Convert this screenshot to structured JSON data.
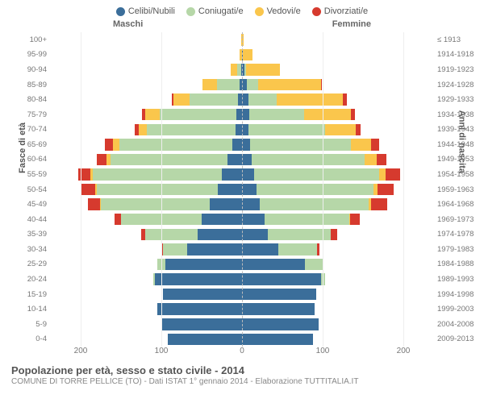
{
  "chart": {
    "type": "population-pyramid",
    "legend": [
      {
        "label": "Celibi/Nubili",
        "color": "#3b6e9a"
      },
      {
        "label": "Coniugati/e",
        "color": "#b6d7a8"
      },
      {
        "label": "Vedovi/e",
        "color": "#fac64c"
      },
      {
        "label": "Divorziati/e",
        "color": "#d63a2e"
      }
    ],
    "header_male": "Maschi",
    "header_female": "Femmine",
    "y_left_title": "Fasce di età",
    "y_right_title": "Anni di nascita",
    "x_ticks": [
      200,
      100,
      0,
      100,
      200
    ],
    "x_max": 240,
    "background_color": "#ffffff",
    "grid_color": "#eeeeee",
    "center_line_color": "#bbbbbb",
    "label_fontsize": 9.5,
    "legend_fontsize": 11,
    "rows": [
      {
        "age": "100+",
        "birth": "≤ 1913",
        "m": {
          "c": 0,
          "m": 0,
          "w": 1,
          "d": 0
        },
        "f": {
          "c": 0,
          "m": 0,
          "w": 2,
          "d": 0
        }
      },
      {
        "age": "95-99",
        "birth": "1914-1918",
        "m": {
          "c": 0,
          "m": 0,
          "w": 3,
          "d": 0
        },
        "f": {
          "c": 1,
          "m": 0,
          "w": 12,
          "d": 0
        }
      },
      {
        "age": "90-94",
        "birth": "1919-1923",
        "m": {
          "c": 1,
          "m": 5,
          "w": 8,
          "d": 0
        },
        "f": {
          "c": 3,
          "m": 2,
          "w": 42,
          "d": 0
        }
      },
      {
        "age": "85-89",
        "birth": "1924-1928",
        "m": {
          "c": 3,
          "m": 28,
          "w": 18,
          "d": 0
        },
        "f": {
          "c": 6,
          "m": 14,
          "w": 78,
          "d": 1
        }
      },
      {
        "age": "80-84",
        "birth": "1929-1933",
        "m": {
          "c": 5,
          "m": 60,
          "w": 20,
          "d": 2
        },
        "f": {
          "c": 8,
          "m": 35,
          "w": 82,
          "d": 5
        }
      },
      {
        "age": "75-79",
        "birth": "1934-1938",
        "m": {
          "c": 7,
          "m": 95,
          "w": 18,
          "d": 4
        },
        "f": {
          "c": 9,
          "m": 68,
          "w": 58,
          "d": 5
        }
      },
      {
        "age": "70-74",
        "birth": "1939-1943",
        "m": {
          "c": 8,
          "m": 110,
          "w": 10,
          "d": 5
        },
        "f": {
          "c": 8,
          "m": 95,
          "w": 38,
          "d": 6
        }
      },
      {
        "age": "65-69",
        "birth": "1944-1948",
        "m": {
          "c": 12,
          "m": 140,
          "w": 8,
          "d": 10
        },
        "f": {
          "c": 10,
          "m": 125,
          "w": 25,
          "d": 10
        }
      },
      {
        "age": "60-64",
        "birth": "1949-1953",
        "m": {
          "c": 18,
          "m": 145,
          "w": 5,
          "d": 12
        },
        "f": {
          "c": 12,
          "m": 140,
          "w": 15,
          "d": 12
        }
      },
      {
        "age": "55-59",
        "birth": "1954-1958",
        "m": {
          "c": 25,
          "m": 160,
          "w": 3,
          "d": 15
        },
        "f": {
          "c": 15,
          "m": 155,
          "w": 8,
          "d": 18
        }
      },
      {
        "age": "50-54",
        "birth": "1959-1963",
        "m": {
          "c": 30,
          "m": 150,
          "w": 2,
          "d": 18
        },
        "f": {
          "c": 18,
          "m": 145,
          "w": 5,
          "d": 20
        }
      },
      {
        "age": "45-49",
        "birth": "1964-1968",
        "m": {
          "c": 40,
          "m": 135,
          "w": 1,
          "d": 15
        },
        "f": {
          "c": 22,
          "m": 135,
          "w": 3,
          "d": 20
        }
      },
      {
        "age": "40-44",
        "birth": "1969-1973",
        "m": {
          "c": 50,
          "m": 100,
          "w": 0,
          "d": 8
        },
        "f": {
          "c": 28,
          "m": 105,
          "w": 1,
          "d": 12
        }
      },
      {
        "age": "35-39",
        "birth": "1974-1978",
        "m": {
          "c": 55,
          "m": 65,
          "w": 0,
          "d": 5
        },
        "f": {
          "c": 32,
          "m": 78,
          "w": 0,
          "d": 8
        }
      },
      {
        "age": "30-34",
        "birth": "1979-1983",
        "m": {
          "c": 68,
          "m": 30,
          "w": 0,
          "d": 2
        },
        "f": {
          "c": 45,
          "m": 48,
          "w": 0,
          "d": 3
        }
      },
      {
        "age": "25-29",
        "birth": "1984-1988",
        "m": {
          "c": 95,
          "m": 10,
          "w": 0,
          "d": 0
        },
        "f": {
          "c": 78,
          "m": 22,
          "w": 0,
          "d": 1
        }
      },
      {
        "age": "20-24",
        "birth": "1989-1993",
        "m": {
          "c": 108,
          "m": 2,
          "w": 0,
          "d": 0
        },
        "f": {
          "c": 98,
          "m": 5,
          "w": 0,
          "d": 0
        }
      },
      {
        "age": "15-19",
        "birth": "1994-1998",
        "m": {
          "c": 98,
          "m": 0,
          "w": 0,
          "d": 0
        },
        "f": {
          "c": 92,
          "m": 0,
          "w": 0,
          "d": 0
        }
      },
      {
        "age": "10-14",
        "birth": "1999-2003",
        "m": {
          "c": 105,
          "m": 0,
          "w": 0,
          "d": 0
        },
        "f": {
          "c": 90,
          "m": 0,
          "w": 0,
          "d": 0
        }
      },
      {
        "age": "5-9",
        "birth": "2004-2008",
        "m": {
          "c": 100,
          "m": 0,
          "w": 0,
          "d": 0
        },
        "f": {
          "c": 95,
          "m": 0,
          "w": 0,
          "d": 0
        }
      },
      {
        "age": "0-4",
        "birth": "2009-2013",
        "m": {
          "c": 92,
          "m": 0,
          "w": 0,
          "d": 0
        },
        "f": {
          "c": 88,
          "m": 0,
          "w": 0,
          "d": 0
        }
      }
    ],
    "title": "Popolazione per età, sesso e stato civile - 2014",
    "subtitle": "COMUNE DI TORRE PELLICE (TO) - Dati ISTAT 1° gennaio 2014 - Elaborazione TUTTITALIA.IT"
  }
}
